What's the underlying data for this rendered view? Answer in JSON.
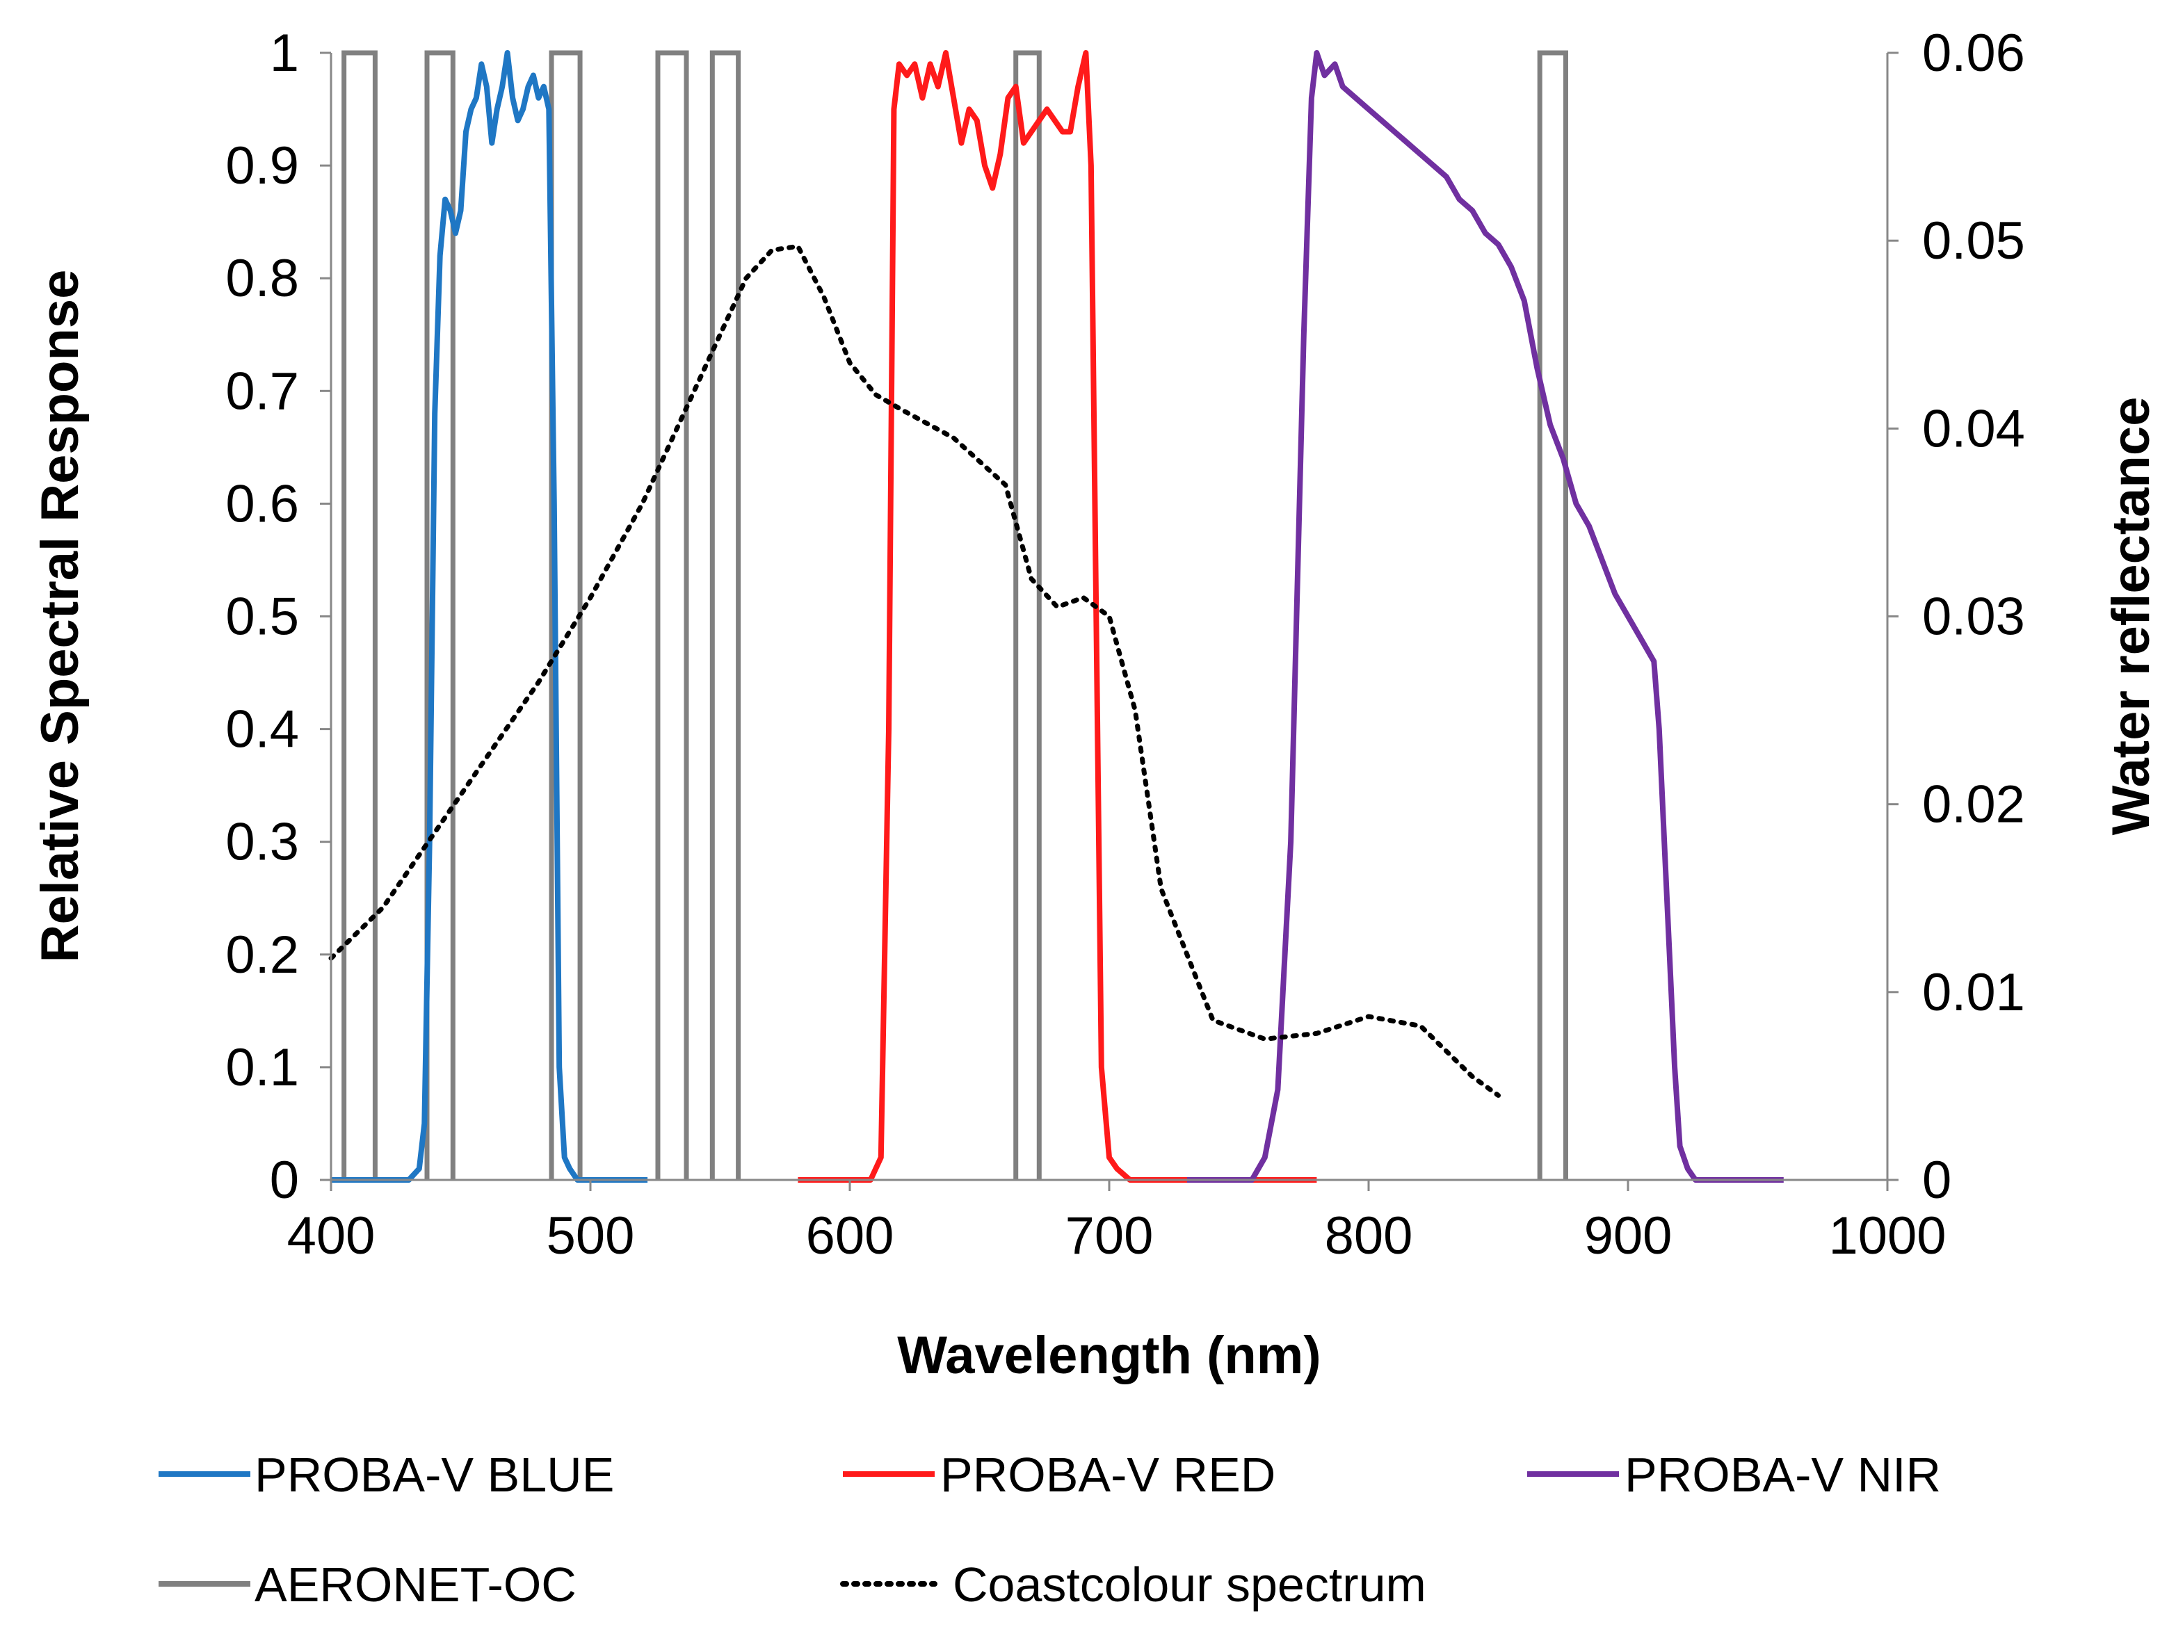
{
  "chart_data": {
    "type": "line",
    "title": "",
    "xlabel": "Wavelength (nm)",
    "ylabel": "Relative Spectral Response",
    "y2label": "Water reflectance",
    "xlim": [
      400,
      1000
    ],
    "ylim": [
      0,
      1
    ],
    "y2lim": [
      0,
      0.06
    ],
    "x_ticks": [
      "400",
      "500",
      "600",
      "700",
      "800",
      "900",
      "1000"
    ],
    "y_ticks": [
      "0",
      "0.1",
      "0.2",
      "0.3",
      "0.4",
      "0.5",
      "0.6",
      "0.7",
      "0.8",
      "0.9",
      "1"
    ],
    "y2_ticks": [
      "0",
      "0.01",
      "0.02",
      "0.03",
      "0.04",
      "0.05",
      "0.06"
    ],
    "grid": false,
    "legend_position": "bottom",
    "series": [
      {
        "name": "PROBA-V BLUE",
        "axis": "left",
        "color": "#1f77c4",
        "style": "solid",
        "x": [
          400,
          430,
          434,
          436,
          438,
          440,
          442,
          444,
          446,
          448,
          450,
          452,
          454,
          456,
          458,
          460,
          462,
          464,
          466,
          468,
          470,
          472,
          474,
          476,
          478,
          480,
          482,
          484,
          486,
          488,
          490,
          492,
          495,
          522
        ],
        "y": [
          0,
          0,
          0.01,
          0.05,
          0.3,
          0.68,
          0.82,
          0.87,
          0.86,
          0.84,
          0.86,
          0.93,
          0.95,
          0.96,
          0.99,
          0.97,
          0.92,
          0.95,
          0.97,
          1.0,
          0.96,
          0.94,
          0.95,
          0.97,
          0.98,
          0.96,
          0.97,
          0.95,
          0.6,
          0.1,
          0.02,
          0.01,
          0,
          0
        ]
      },
      {
        "name": "PROBA-V RED",
        "axis": "left",
        "color": "#ff1a1a",
        "style": "solid",
        "x": [
          580,
          608,
          612,
          615,
          617,
          619,
          622,
          625,
          628,
          631,
          634,
          637,
          640,
          643,
          646,
          649,
          652,
          655,
          658,
          661,
          664,
          667,
          670,
          673,
          676,
          679,
          682,
          685,
          688,
          691,
          693,
          695,
          697,
          700,
          703,
          708,
          780
        ],
        "y": [
          0,
          0,
          0.02,
          0.4,
          0.95,
          0.99,
          0.98,
          0.99,
          0.96,
          0.99,
          0.97,
          1.0,
          0.96,
          0.92,
          0.95,
          0.94,
          0.9,
          0.88,
          0.91,
          0.96,
          0.97,
          0.92,
          0.93,
          0.94,
          0.95,
          0.94,
          0.93,
          0.93,
          0.97,
          1.0,
          0.9,
          0.5,
          0.1,
          0.02,
          0.01,
          0,
          0
        ]
      },
      {
        "name": "PROBA-V NIR",
        "axis": "left",
        "color": "#7030a0",
        "style": "solid",
        "x": [
          730,
          755,
          760,
          765,
          770,
          775,
          778,
          780,
          783,
          787,
          790,
          795,
          800,
          805,
          810,
          815,
          820,
          825,
          830,
          835,
          840,
          845,
          850,
          855,
          860,
          865,
          870,
          875,
          880,
          885,
          890,
          895,
          900,
          905,
          910,
          912,
          914,
          916,
          918,
          920,
          923,
          926,
          930,
          960
        ],
        "y": [
          0,
          0,
          0.02,
          0.08,
          0.3,
          0.75,
          0.96,
          1.0,
          0.98,
          0.99,
          0.97,
          0.96,
          0.95,
          0.94,
          0.93,
          0.92,
          0.91,
          0.9,
          0.89,
          0.87,
          0.86,
          0.84,
          0.83,
          0.81,
          0.78,
          0.72,
          0.67,
          0.64,
          0.6,
          0.58,
          0.55,
          0.52,
          0.5,
          0.48,
          0.46,
          0.4,
          0.3,
          0.2,
          0.1,
          0.03,
          0.01,
          0,
          0,
          0
        ]
      },
      {
        "name": "AERONET-OC",
        "axis": "left",
        "color": "#808080",
        "style": "bands",
        "bands": [
          [
            405,
            417
          ],
          [
            437,
            447
          ],
          [
            485,
            496
          ],
          [
            526,
            537
          ],
          [
            547,
            557
          ],
          [
            664,
            673
          ],
          [
            866,
            876
          ]
        ]
      },
      {
        "name": "Coastcolour spectrum",
        "axis": "right",
        "color": "#000000",
        "style": "dotted",
        "x": [
          400,
          420,
          440,
          460,
          480,
          500,
          520,
          540,
          560,
          570,
          580,
          590,
          600,
          610,
          620,
          640,
          660,
          670,
          680,
          690,
          700,
          710,
          720,
          740,
          760,
          780,
          800,
          820,
          840,
          850
        ],
        "y": [
          0.0118,
          0.0145,
          0.0185,
          0.0225,
          0.0265,
          0.031,
          0.036,
          0.042,
          0.048,
          0.0495,
          0.0497,
          0.047,
          0.0435,
          0.0418,
          0.041,
          0.0395,
          0.037,
          0.032,
          0.0305,
          0.031,
          0.03,
          0.025,
          0.0155,
          0.0085,
          0.0075,
          0.0078,
          0.0087,
          0.0082,
          0.0055,
          0.0045
        ]
      }
    ]
  }
}
